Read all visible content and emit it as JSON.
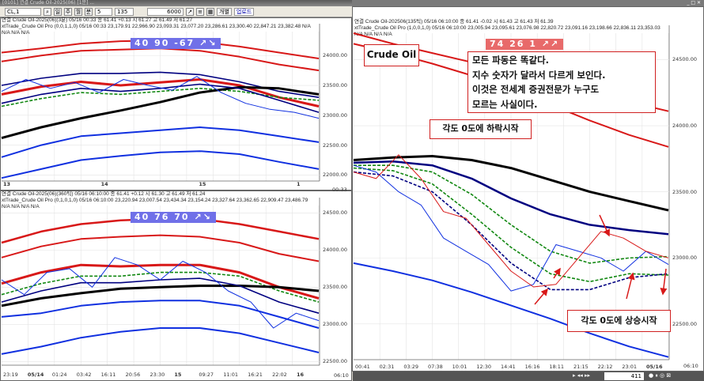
{
  "window": {
    "title": "[0101] 연결 Crude Oil-2025(06) [1분] ..."
  },
  "toolbar": {
    "symbol": "CL,1",
    "period_day": "일",
    "period_week": "주",
    "period_month": "월",
    "period_min": "분",
    "interval": "5",
    "count": "135",
    "amount": "6000",
    "btn_individual": "개별",
    "btn_download": "업로드"
  },
  "colors": {
    "red": "#d81818",
    "green": "#118811",
    "navy": "#000080",
    "blue": "#1030e0",
    "black": "#000000",
    "sig_blue": "#7070e8",
    "sig_red": "#e86a6a"
  },
  "panes": [
    {
      "id": "top-left",
      "info": "연결 Crude Oil-2025(06)(3분) 05/16 00:33  종 61.41 +0.13  시 61.27 고 61.49 저 61.27",
      "indicator": "xtTrade_Crude Oil Pro  (0,0,1,1,0) 05/16 00:33 23,179.91 22,966.90 23,093.31 23,077.20 23,286.61 23,300.40 22,847.21 23,382.48 N/A N/A N/A N/A",
      "signal": "40  90  -67  ↗↘",
      "y_ticks": [
        "24000.00",
        "23500.00",
        "23000.00",
        "22500.00",
        "22000.00"
      ],
      "x_ticks": [
        "13",
        "14",
        "15",
        "1"
      ],
      "time_readout": "00:33",
      "ylim": [
        21900,
        24400
      ]
    },
    {
      "id": "bottom-left",
      "info": "연결 Crude Oil-2025(06)(360틱) 05/16 06:10:00  종 61.41 +0.12  시 61.30 고 61.49 저 61.24",
      "indicator": "xtTrade_Crude Oil Pro  (0,1,0,1,0) 05/16 06:10:00 23,220.94 23,007.54 23,434.34 23,154.24 23,327.64 23,362.65 22,909.47 23,486.79 N/A N/A N/A N/A",
      "signal": "40  76  70  ↗↘",
      "y_ticks": [
        "24500.00",
        "24000.00",
        "23500.00",
        "23000.00",
        "22500.00"
      ],
      "x_ticks": [
        "23:19",
        "05/14",
        "01:24",
        "03:42",
        "16:11",
        "20:56",
        "23:30",
        "15",
        "09:27",
        "11:01",
        "16:21",
        "22:02",
        "16"
      ],
      "time_readout": "06:10",
      "ylim": [
        22450,
        24600
      ]
    },
    {
      "id": "right",
      "info": "연결 Crude Oil-202506(135틱) 05/16 06:10:00  종 61.41 -0.02  시 61.43 고 61.43 저 61.39",
      "indicator": "xtTrade_Crude Oil Pro  (1,0,0,1,0) 05/16 06:10:00 23,005.94 23,095.61 23,076.98 22,820.72 23,091.16 23,198.66 22,836.11 23,353.03 N/A N/A N/A N/A",
      "signal": "74  26  1  ↗↗",
      "y_ticks": [
        "24500.00",
        "24000.00",
        "23500.00",
        "23000.00",
        "22500.00"
      ],
      "x_ticks": [
        "00:41",
        "02:31",
        "03:29",
        "07:38",
        "10:01",
        "12:30",
        "14:41",
        "16:16",
        "18:11",
        "21:15",
        "22:12",
        "23:01",
        "05/16"
      ],
      "time_readout": "06:10",
      "ylim": [
        22230,
        24700
      ],
      "scroll_count": "411"
    }
  ],
  "annotations": {
    "title": "Crude Oil",
    "note_lines": [
      "모든 파동은 똑같다.",
      "지수 숫자가 달라서 다르게 보인다.",
      "이것은 전세계 증권전문가 누구도",
      "모르는 사실이다."
    ],
    "fall_label": "각도 0도에 하락시작",
    "rise_label": "각도 0도에 상승시작"
  },
  "chart_data": [
    {
      "type": "line",
      "pane": "top-left",
      "ylim": [
        21900,
        24400
      ],
      "series": [
        {
          "color": "#d81818",
          "width": 2,
          "values": [
            24050,
            24120,
            24200,
            24240,
            24250,
            24230,
            24150,
            24050,
            23950
          ]
        },
        {
          "color": "#d81818",
          "width": 2,
          "values": [
            23900,
            24000,
            24080,
            24100,
            24120,
            24080,
            23980,
            23850,
            23750
          ]
        },
        {
          "color": "#000080",
          "width": 1.6,
          "values": [
            23500,
            23620,
            23700,
            23700,
            23720,
            23680,
            23560,
            23400,
            23300
          ]
        },
        {
          "color": "#d81818",
          "width": 3,
          "values": [
            23350,
            23480,
            23560,
            23500,
            23550,
            23600,
            23500,
            23300,
            23150
          ]
        },
        {
          "color": "#118811",
          "width": 1.6,
          "dash": "4 2",
          "values": [
            23150,
            23280,
            23380,
            23350,
            23400,
            23450,
            23400,
            23300,
            23250
          ]
        },
        {
          "color": "#000000",
          "width": 3,
          "values": [
            22620,
            22800,
            22950,
            23080,
            23220,
            23380,
            23470,
            23450,
            23350
          ]
        },
        {
          "color": "#000080",
          "width": 1.6,
          "values": [
            23200,
            23350,
            23450,
            23400,
            23450,
            23520,
            23450,
            23250,
            23050
          ]
        },
        {
          "color": "#1030e0",
          "width": 2,
          "values": [
            22300,
            22500,
            22650,
            22700,
            22750,
            22800,
            22750,
            22650,
            22550
          ]
        },
        {
          "color": "#1030e0",
          "width": 2,
          "values": [
            21950,
            22100,
            22250,
            22320,
            22380,
            22400,
            22350,
            22220,
            22100
          ]
        },
        {
          "color": "#1030e0",
          "width": 1,
          "values": [
            23400,
            23600,
            23450,
            23550,
            23380,
            23600,
            23500,
            23420,
            23650,
            23380,
            23200,
            23100,
            23050,
            22950
          ]
        }
      ]
    },
    {
      "type": "line",
      "pane": "bottom-left",
      "ylim": [
        22450,
        24600
      ],
      "series": [
        {
          "color": "#d81818",
          "width": 2.5,
          "values": [
            24100,
            24250,
            24350,
            24400,
            24420,
            24420,
            24350,
            24250,
            24150
          ]
        },
        {
          "color": "#d81818",
          "width": 2,
          "values": [
            23900,
            24050,
            24150,
            24180,
            24200,
            24180,
            24100,
            23950,
            23850
          ]
        },
        {
          "color": "#d81818",
          "width": 3,
          "values": [
            23550,
            23700,
            23800,
            23780,
            23800,
            23800,
            23700,
            23500,
            23350
          ]
        },
        {
          "color": "#118811",
          "width": 1.6,
          "dash": "4 2",
          "values": [
            23400,
            23550,
            23650,
            23650,
            23700,
            23700,
            23650,
            23450,
            23300
          ]
        },
        {
          "color": "#000000",
          "width": 3,
          "values": [
            23250,
            23350,
            23420,
            23480,
            23500,
            23520,
            23520,
            23500,
            23450
          ]
        },
        {
          "color": "#000080",
          "width": 1.6,
          "values": [
            23300,
            23450,
            23560,
            23560,
            23600,
            23620,
            23520,
            23300,
            23150
          ]
        },
        {
          "color": "#1030e0",
          "width": 2,
          "values": [
            23100,
            23150,
            23250,
            23300,
            23320,
            23320,
            23250,
            23100,
            22950
          ]
        },
        {
          "color": "#1030e0",
          "width": 2,
          "values": [
            22600,
            22700,
            22820,
            22900,
            22950,
            22950,
            22880,
            22750,
            22620
          ]
        },
        {
          "color": "#1030e0",
          "width": 1,
          "values": [
            23600,
            23400,
            23700,
            23750,
            23500,
            23900,
            23800,
            23600,
            23850,
            23700,
            23450,
            23300,
            22950,
            23150,
            23050
          ]
        }
      ]
    },
    {
      "type": "line",
      "pane": "right",
      "ylim": [
        22230,
        24700
      ],
      "series": [
        {
          "color": "#d81818",
          "width": 2,
          "values": [
            24700,
            24620,
            24550,
            24480,
            24400,
            24320,
            24250,
            24180,
            24110
          ]
        },
        {
          "color": "#d81818",
          "width": 2,
          "values": [
            24620,
            24550,
            24470,
            24380,
            24290,
            24160,
            24040,
            23930,
            23840
          ]
        },
        {
          "color": "#000000",
          "width": 3,
          "values": [
            23740,
            23760,
            23770,
            23740,
            23680,
            23590,
            23500,
            23430,
            23360
          ]
        },
        {
          "color": "#000080",
          "width": 2.5,
          "values": [
            23720,
            23730,
            23700,
            23600,
            23450,
            23330,
            23250,
            23210,
            23180
          ]
        },
        {
          "color": "#118811",
          "width": 1.6,
          "dash": "4 2",
          "values": [
            23700,
            23700,
            23650,
            23480,
            23250,
            23050,
            22960,
            23000,
            23010
          ]
        },
        {
          "color": "#118811",
          "width": 1.6,
          "dash": "4 2",
          "values": [
            23680,
            23660,
            23560,
            23330,
            23080,
            22880,
            22820,
            22880,
            22870
          ]
        },
        {
          "color": "#000080",
          "width": 1.6,
          "dash": "4 2",
          "values": [
            23650,
            23620,
            23500,
            23250,
            22960,
            22760,
            22760,
            22850,
            22880
          ]
        },
        {
          "color": "#1030e0",
          "width": 2,
          "values": [
            22960,
            22900,
            22830,
            22740,
            22640,
            22540,
            22430,
            22330,
            22250
          ]
        },
        {
          "color": "#1030e0",
          "width": 1,
          "values": [
            23700,
            23650,
            23500,
            23400,
            23150,
            23050,
            22950,
            22750,
            22800,
            23100,
            23050,
            23000,
            22900,
            23050,
            22950
          ]
        },
        {
          "color": "#d81818",
          "width": 1,
          "values": [
            23650,
            23600,
            23780,
            23600,
            23350,
            23300,
            23100,
            22900,
            22780,
            22800,
            23000,
            23200,
            23150,
            23050,
            23000
          ]
        }
      ]
    }
  ]
}
